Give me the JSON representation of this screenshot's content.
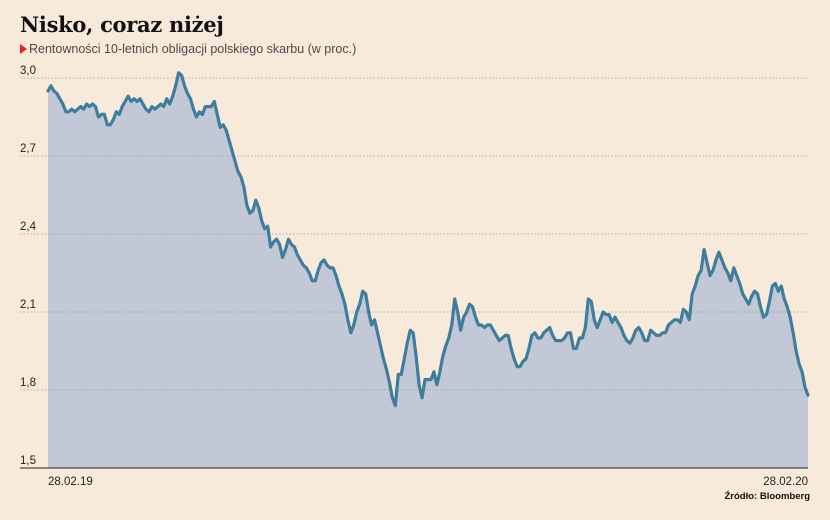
{
  "header": {
    "title": "Nisko, coraz niżej",
    "subtitle": "Rentowności 10-letnich obligacji polskiego skarbu (w proc.)",
    "source": "Źródło: Bloomberg"
  },
  "colors": {
    "background": "#f8eadb",
    "line": "#3f7d9d",
    "area": "#c3c8d6",
    "grid": "#9a9a9a",
    "marker": "#e0262b"
  },
  "chart_data": {
    "type": "area",
    "title": "Nisko, coraz niżej",
    "subtitle": "Rentowności 10-letnich obligacji polskiego skarbu (w proc.)",
    "xlabel": "",
    "ylabel": "",
    "x_tick_labels": [
      "28.02.19",
      "28.02.20"
    ],
    "y_tick_labels": [
      "3,0",
      "2,7",
      "2,4",
      "2,1",
      "1,8",
      "1,5"
    ],
    "y_ticks": [
      3.0,
      2.7,
      2.4,
      2.1,
      1.8,
      1.5
    ],
    "ylim": [
      1.5,
      3.05
    ],
    "grid": true,
    "legend": "none",
    "series": [
      {
        "values": [
          2.95,
          2.97,
          2.95,
          2.94,
          2.92,
          2.9,
          2.87,
          2.87,
          2.88,
          2.87,
          2.88,
          2.89,
          2.88,
          2.9,
          2.89,
          2.9,
          2.89,
          2.85,
          2.86,
          2.86,
          2.82,
          2.82,
          2.84,
          2.87,
          2.86,
          2.89,
          2.91,
          2.93,
          2.91,
          2.92,
          2.91,
          2.92,
          2.9,
          2.88,
          2.87,
          2.89,
          2.88,
          2.89,
          2.9,
          2.89,
          2.92,
          2.9,
          2.93,
          2.97,
          3.02,
          3.01,
          2.97,
          2.94,
          2.92,
          2.88,
          2.85,
          2.87,
          2.86,
          2.89,
          2.89,
          2.89,
          2.91,
          2.86,
          2.81,
          2.82,
          2.8,
          2.76,
          2.72,
          2.68,
          2.64,
          2.62,
          2.58,
          2.51,
          2.48,
          2.49,
          2.53,
          2.5,
          2.45,
          2.42,
          2.43,
          2.35,
          2.37,
          2.38,
          2.36,
          2.31,
          2.34,
          2.38,
          2.36,
          2.35,
          2.32,
          2.3,
          2.28,
          2.27,
          2.25,
          2.22,
          2.22,
          2.26,
          2.29,
          2.3,
          2.28,
          2.27,
          2.27,
          2.24,
          2.2,
          2.17,
          2.13,
          2.07,
          2.02,
          2.05,
          2.1,
          2.13,
          2.18,
          2.17,
          2.1,
          2.05,
          2.07,
          2.02,
          1.97,
          1.92,
          1.88,
          1.83,
          1.77,
          1.74,
          1.86,
          1.86,
          1.92,
          1.98,
          2.03,
          2.02,
          1.93,
          1.82,
          1.77,
          1.84,
          1.84,
          1.84,
          1.87,
          1.82,
          1.87,
          1.93,
          1.97,
          2.0,
          2.05,
          2.15,
          2.1,
          2.03,
          2.08,
          2.1,
          2.13,
          2.12,
          2.08,
          2.05,
          2.05,
          2.04,
          2.05,
          2.05,
          2.03,
          2.01,
          1.99,
          2.0,
          2.01,
          2.01,
          1.96,
          1.92,
          1.89,
          1.89,
          1.91,
          1.92,
          1.96,
          2.01,
          2.02,
          2.0,
          2.0,
          2.02,
          2.03,
          2.04,
          2.01,
          1.99,
          1.99,
          1.99,
          2.0,
          2.02,
          2.02,
          1.96,
          1.96,
          2.0,
          2.0,
          2.04,
          2.15,
          2.14,
          2.07,
          2.04,
          2.07,
          2.1,
          2.09,
          2.09,
          2.06,
          2.08,
          2.06,
          2.04,
          2.01,
          1.99,
          1.98,
          2.0,
          2.03,
          2.04,
          2.02,
          1.99,
          1.99,
          2.03,
          2.02,
          2.01,
          2.01,
          2.02,
          2.02,
          2.05,
          2.06,
          2.07,
          2.07,
          2.06,
          2.11,
          2.1,
          2.07,
          2.17,
          2.2,
          2.24,
          2.26,
          2.34,
          2.29,
          2.24,
          2.26,
          2.3,
          2.33,
          2.3,
          2.27,
          2.25,
          2.22,
          2.27,
          2.24,
          2.21,
          2.17,
          2.15,
          2.13,
          2.16,
          2.18,
          2.17,
          2.12,
          2.08,
          2.09,
          2.14,
          2.2,
          2.21,
          2.18,
          2.2,
          2.15,
          2.12,
          2.08,
          2.02,
          1.95,
          1.9,
          1.87,
          1.81,
          1.78
        ]
      }
    ]
  }
}
